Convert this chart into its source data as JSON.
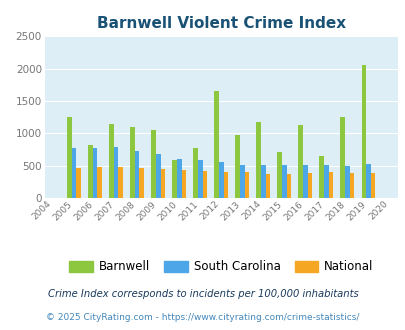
{
  "title": "Barnwell Violent Crime Index",
  "years": [
    2004,
    2005,
    2006,
    2007,
    2008,
    2009,
    2010,
    2011,
    2012,
    2013,
    2014,
    2015,
    2016,
    2017,
    2018,
    2019,
    2020
  ],
  "barnwell": [
    0,
    1260,
    820,
    1150,
    1100,
    1045,
    590,
    780,
    1650,
    980,
    1180,
    710,
    1130,
    650,
    1250,
    2050,
    0
  ],
  "south_carolina": [
    0,
    780,
    780,
    790,
    730,
    680,
    600,
    590,
    560,
    510,
    505,
    505,
    505,
    505,
    490,
    520,
    0
  ],
  "national": [
    0,
    470,
    475,
    475,
    470,
    450,
    435,
    415,
    405,
    395,
    370,
    370,
    390,
    395,
    390,
    380,
    0
  ],
  "bar_width": 0.22,
  "ylim": [
    0,
    2500
  ],
  "yticks": [
    0,
    500,
    1000,
    1500,
    2000,
    2500
  ],
  "colors": {
    "barnwell": "#8dc63f",
    "south_carolina": "#4da6e8",
    "national": "#f5a623"
  },
  "bg_color": "#ddeef6",
  "grid_color": "#ffffff",
  "title_color": "#1a5276",
  "legend_labels": [
    "Barnwell",
    "South Carolina",
    "National"
  ],
  "footnote1": "Crime Index corresponds to incidents per 100,000 inhabitants",
  "footnote2": "© 2025 CityRating.com - https://www.cityrating.com/crime-statistics/",
  "footnote1_color": "#1a3a5c",
  "footnote2_color": "#4488bb"
}
